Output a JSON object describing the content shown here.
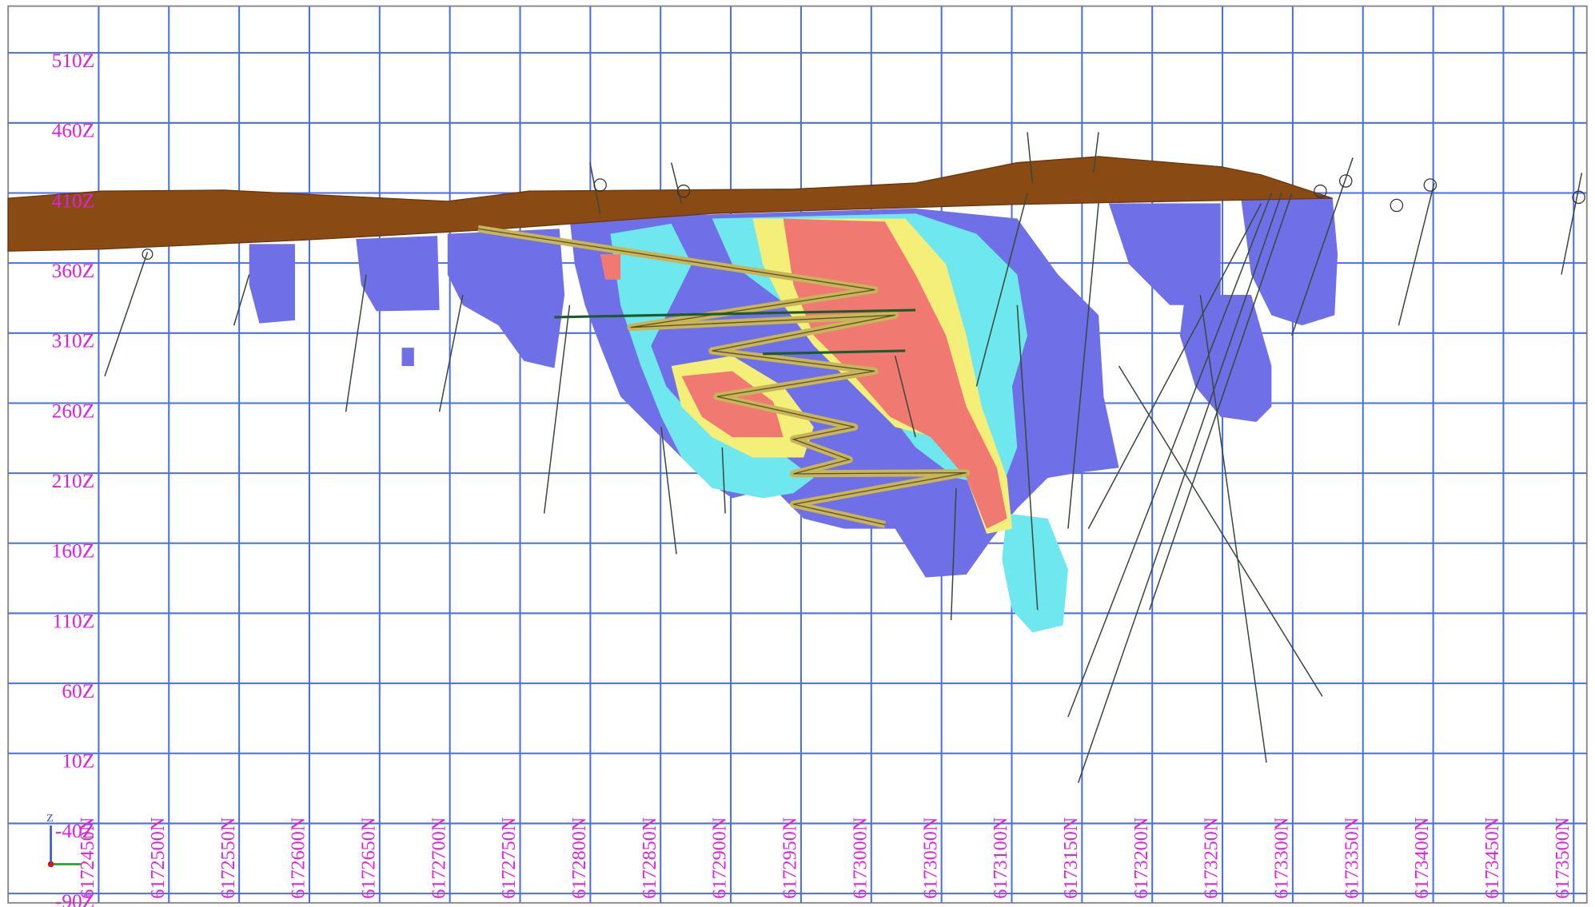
{
  "section_view": {
    "z_labels": [
      "510Z",
      "460Z",
      "410Z",
      "360Z",
      "310Z",
      "260Z",
      "210Z",
      "160Z",
      "110Z",
      "60Z",
      "10Z",
      "-40Z",
      "-90Z"
    ],
    "n_labels": [
      "6172450N",
      "6172500N",
      "6172550N",
      "6172600N",
      "6172650N",
      "6172700N",
      "6172750N",
      "6172800N",
      "6172850N",
      "6172900N",
      "6172950N",
      "6173000N",
      "6173050N",
      "6173100N",
      "6173150N",
      "6173200N",
      "6173250N",
      "6173300N",
      "6173350N",
      "6173400N",
      "6173450N",
      "6173500N"
    ],
    "axis_triad_label": "Z"
  }
}
